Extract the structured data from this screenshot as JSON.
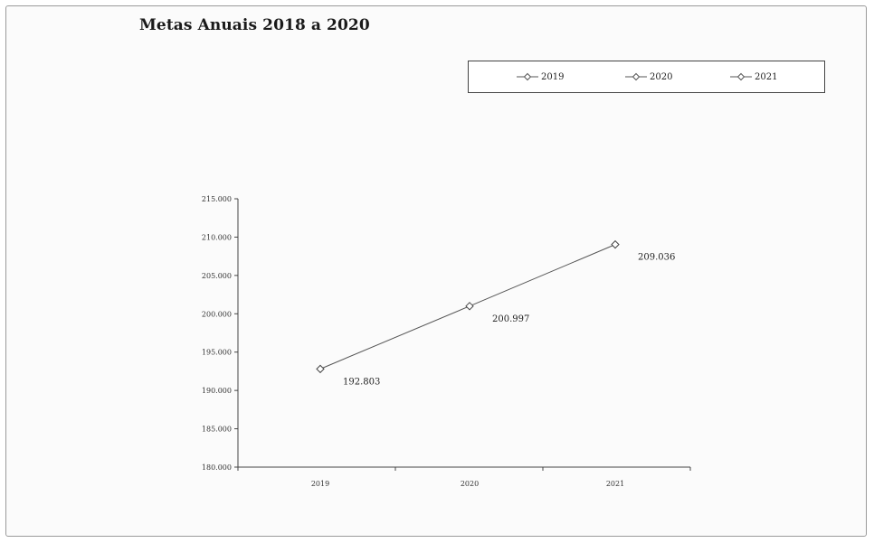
{
  "chart_data": {
    "type": "line",
    "title": "Metas Anuais 2018 a 2020",
    "xlabel": "",
    "ylabel": "",
    "categories": [
      "2019",
      "2020",
      "2021"
    ],
    "series": [
      {
        "values": [
          192803,
          200997,
          209036
        ],
        "labels": [
          "192.803",
          "200.997",
          "209.036"
        ]
      }
    ],
    "legend": {
      "placement": "top-right",
      "entries": [
        "2019",
        "2020",
        "2021"
      ]
    },
    "ylim": [
      180000,
      215000
    ],
    "y_ticks": [
      180000,
      185000,
      190000,
      195000,
      200000,
      205000,
      210000,
      215000
    ],
    "y_tick_labels": [
      "180.000",
      "185.000",
      "190.000",
      "195.000",
      "200.000",
      "205.000",
      "210.000",
      "215.000"
    ],
    "grid": false,
    "line_color": "#555555",
    "marker": "diamond"
  }
}
